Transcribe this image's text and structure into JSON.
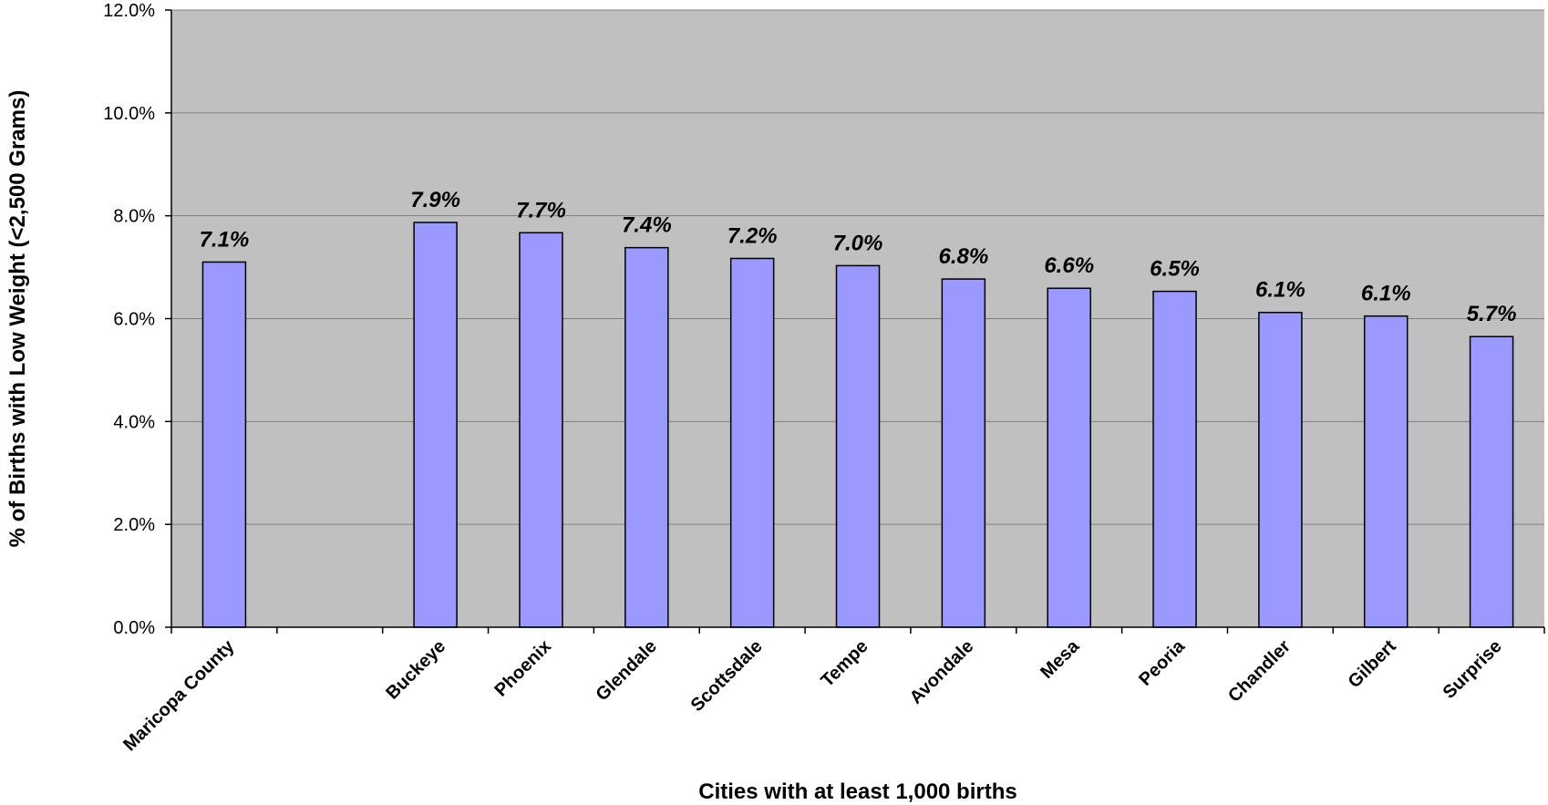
{
  "chart_data": {
    "type": "bar",
    "xlabel": "Cities with at least 1,000 births",
    "ylabel": "% of Births with Low Weight (<2,500 Grams)",
    "ylim": [
      0,
      12
    ],
    "yticks": [
      0,
      2,
      4,
      6,
      8,
      10,
      12
    ],
    "ytick_labels": [
      "0.0%",
      "2.0%",
      "4.0%",
      "6.0%",
      "8.0%",
      "10.0%",
      "12.0%"
    ],
    "grid": "horizontal",
    "categories": [
      "Maricopa County",
      "",
      "Buckeye",
      "Phoenix",
      "Glendale",
      "Scottsdale",
      "Tempe",
      "Avondale",
      "Mesa",
      "Peoria",
      "Chandler",
      "Gilbert",
      "Surprise"
    ],
    "values": [
      7.1,
      null,
      7.87,
      7.67,
      7.38,
      7.17,
      7.03,
      6.77,
      6.59,
      6.53,
      6.12,
      6.05,
      5.65
    ],
    "data_labels": [
      "7.1%",
      "",
      "7.9%",
      "7.7%",
      "7.4%",
      "7.2%",
      "7.0%",
      "6.8%",
      "6.6%",
      "6.5%",
      "6.1%",
      "6.1%",
      "5.7%"
    ],
    "colors": {
      "bar": "#9999FF",
      "plot_bg": "#C0C0C0",
      "grid": "#808080"
    }
  }
}
